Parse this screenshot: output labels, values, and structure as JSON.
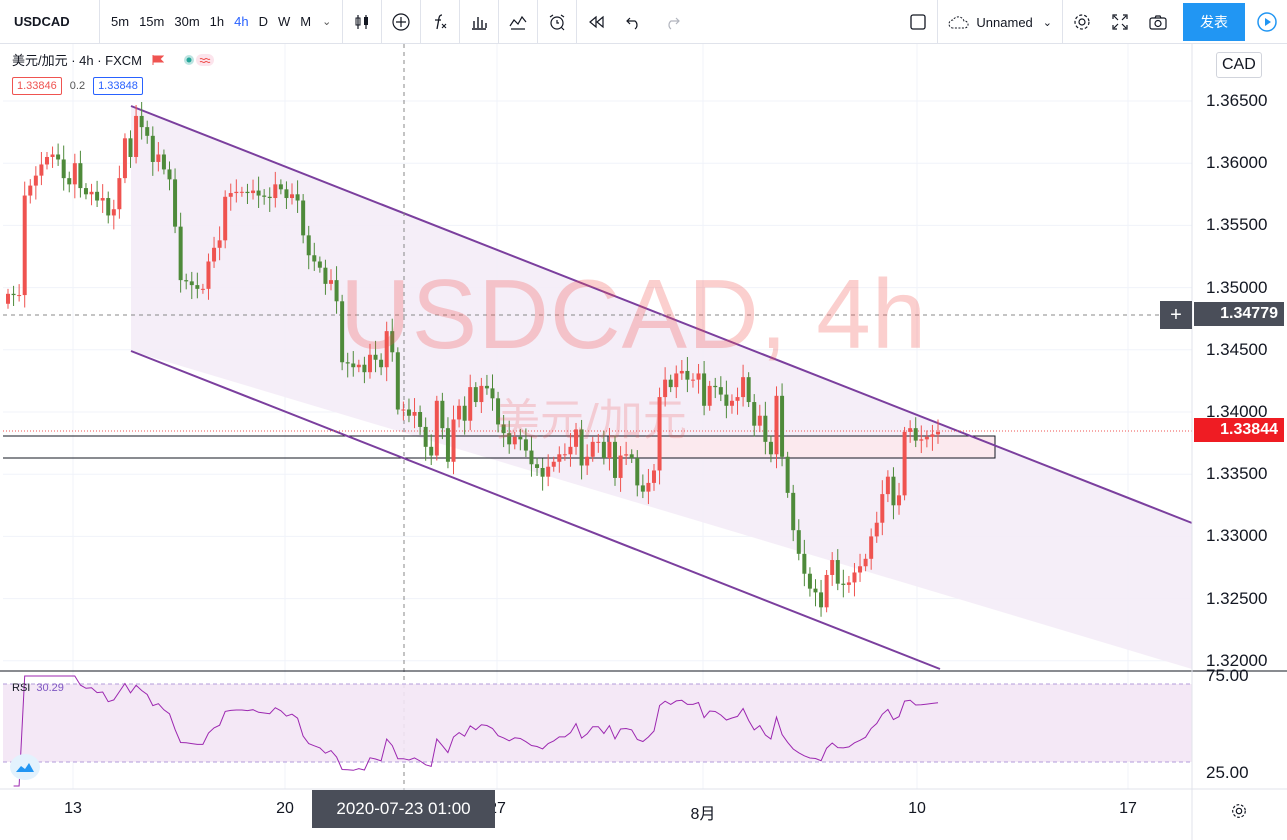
{
  "toolbar": {
    "symbol": "USDCAD",
    "timeframes": [
      "5m",
      "15m",
      "30m",
      "1h",
      "4h",
      "D",
      "W",
      "M"
    ],
    "active_timeframe": "4h",
    "layout_name": "Unnamed",
    "publish_label": "发表"
  },
  "legend": {
    "title": "美元/加元 · 4h · FXCM",
    "bid": "1.33846",
    "spread": "0.2",
    "ask": "1.33848"
  },
  "axis_currency": "CAD",
  "last_price_tag": "1.33844",
  "crosshair_price_tag": "1.34779",
  "crosshair_time_tag": "2020-07-23   01:00",
  "watermark": {
    "symbol_line": "USDCAD, 4h",
    "name_line": "美元/加元"
  },
  "rsi": {
    "label": "RSI",
    "value": "30.29"
  },
  "colors": {
    "up": "#ef5350",
    "down": "#4e8a3a",
    "channel": "#7b3f9e",
    "rsi": "#9c27b0",
    "accent": "#2196f3"
  },
  "chart_data": {
    "type": "candlestick",
    "title": "USDCAD, 4h",
    "y_ticks": [
      "1.36500",
      "1.36000",
      "1.35500",
      "1.35000",
      "1.34500",
      "1.34000",
      "1.33500",
      "1.33000",
      "1.32500",
      "1.32000"
    ],
    "x_ticks": [
      "13",
      "20",
      "27",
      "8月",
      "10",
      "17"
    ],
    "ylim": [
      1.3195,
      1.3685
    ],
    "rsi_ticks": [
      "75.00",
      "25.00"
    ],
    "close_series": [
      1.3495,
      1.3494,
      1.3494,
      1.3574,
      1.3582,
      1.359,
      1.3599,
      1.3605,
      1.3607,
      1.3603,
      1.3588,
      1.3583,
      1.36,
      1.358,
      1.3575,
      1.3577,
      1.357,
      1.3572,
      1.3558,
      1.3563,
      1.3588,
      1.362,
      1.3605,
      1.3638,
      1.3629,
      1.3622,
      1.3601,
      1.3607,
      1.3595,
      1.3587,
      1.3549,
      1.3506,
      1.3505,
      1.3502,
      1.3499,
      1.3499,
      1.3521,
      1.3532,
      1.3538,
      1.3573,
      1.3576,
      1.3577,
      1.3577,
      1.3576,
      1.3578,
      1.3574,
      1.3573,
      1.3572,
      1.3583,
      1.3579,
      1.3572,
      1.3575,
      1.357,
      1.3542,
      1.3526,
      1.3521,
      1.3516,
      1.3503,
      1.3506,
      1.3489,
      1.344,
      1.3439,
      1.3436,
      1.3438,
      1.3432,
      1.3446,
      1.3442,
      1.3436,
      1.3465,
      1.3448,
      1.3402,
      1.3402,
      1.3397,
      1.34,
      1.3388,
      1.3372,
      1.3365,
      1.3409,
      1.3387,
      1.336,
      1.3394,
      1.3405,
      1.3393,
      1.342,
      1.3408,
      1.3421,
      1.3419,
      1.3411,
      1.339,
      1.3383,
      1.3374,
      1.338,
      1.3378,
      1.3369,
      1.3358,
      1.3355,
      1.3348,
      1.3356,
      1.336,
      1.3366,
      1.3366,
      1.3372,
      1.3386,
      1.3357,
      1.3364,
      1.3376,
      1.3376,
      1.3363,
      1.3376,
      1.3347,
      1.3365,
      1.3366,
      1.3363,
      1.3341,
      1.3336,
      1.3343,
      1.3353,
      1.3412,
      1.3426,
      1.342,
      1.3431,
      1.3433,
      1.3426,
      1.3426,
      1.3431,
      1.3405,
      1.3421,
      1.342,
      1.3414,
      1.3405,
      1.3409,
      1.3412,
      1.3428,
      1.3408,
      1.3389,
      1.3397,
      1.3376,
      1.3366,
      1.3413,
      1.3364,
      1.3335,
      1.3305,
      1.3286,
      1.327,
      1.3258,
      1.3255,
      1.3243,
      1.3269,
      1.3281,
      1.3262,
      1.3261,
      1.3263,
      1.3271,
      1.3276,
      1.3282,
      1.33,
      1.3311,
      1.3334,
      1.3348,
      1.3325,
      1.3333,
      1.3384,
      1.3387,
      1.3377,
      1.3378,
      1.338,
      1.3382,
      1.3384
    ]
  }
}
